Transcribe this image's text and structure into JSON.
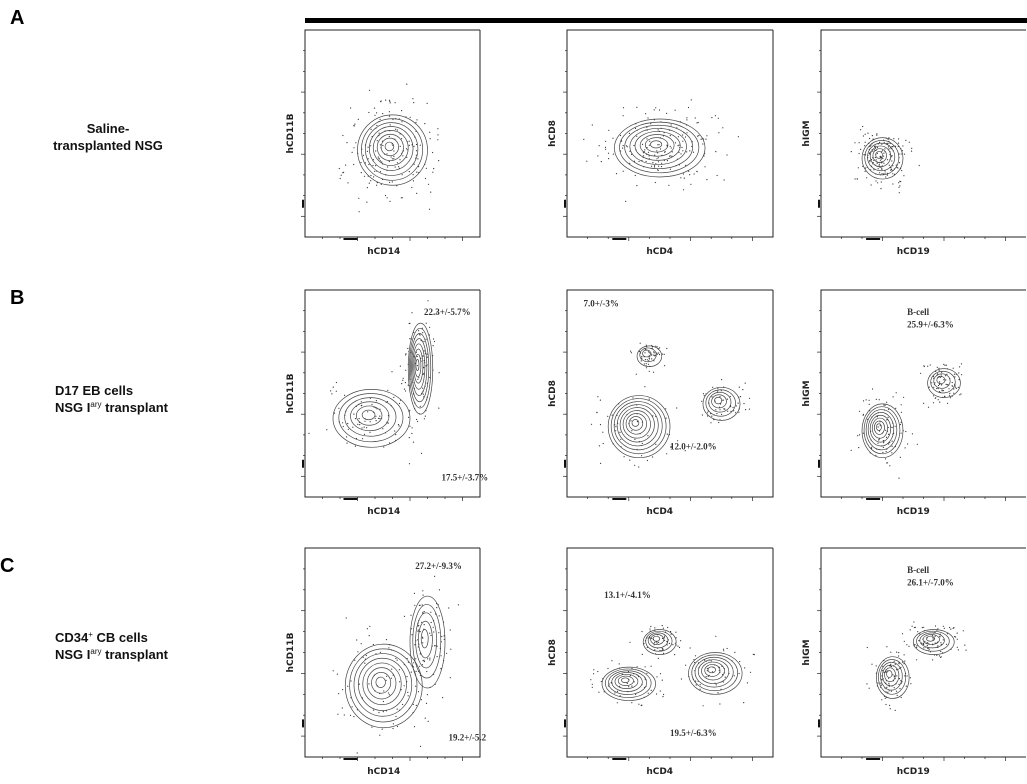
{
  "panels": [
    {
      "letter": "A",
      "label_lines": [
        {
          "text": "Saline-"
        },
        {
          "text": "transplanted  NSG"
        }
      ],
      "plots": [
        {
          "y_label": "hCD11B",
          "x_label": "hCD14"
        },
        {
          "y_label": "hCD8",
          "x_label": "hCD4"
        },
        {
          "y_label": "hIGM",
          "x_label": "hCD19"
        }
      ]
    },
    {
      "letter": "B",
      "label_lines": [
        {
          "text": "D17 EB cells"
        },
        {
          "text": "NSG I",
          "sup": "ary",
          "after": " transplant"
        }
      ],
      "plots": [
        {
          "y_label": "hCD11B",
          "x_label": "hCD14",
          "annotations": [
            "22.3+/-5.7%",
            "17.5+/-3.7%"
          ]
        },
        {
          "y_label": "hCD8",
          "x_label": "hCD4",
          "annotations": [
            "7.0+/-3%",
            "12.0+/-2.0%"
          ]
        },
        {
          "y_label": "hIGM",
          "x_label": "hCD19",
          "annotations": [
            "B-cell",
            "25.9+/-6.3%"
          ]
        }
      ]
    },
    {
      "letter": "C",
      "label_lines": [
        {
          "text": "CD34",
          "sup": "+",
          "after": " CB cells"
        },
        {
          "text": "NSG I",
          "sup": "ary",
          "after": " transplant"
        }
      ],
      "plots": [
        {
          "y_label": "hCD11B",
          "x_label": "hCD14",
          "annotations": [
            "27.2+/-9.3%",
            "19.2+/-5.2"
          ]
        },
        {
          "y_label": "hCD8",
          "x_label": "hCD4",
          "annotations": [
            "13.1+/-4.1%",
            "19.5+/-6.3%"
          ]
        },
        {
          "y_label": "hIGM",
          "x_label": "hCD19",
          "annotations": [
            "B-cell",
            "26.1+/-7.0%"
          ]
        }
      ]
    }
  ]
}
